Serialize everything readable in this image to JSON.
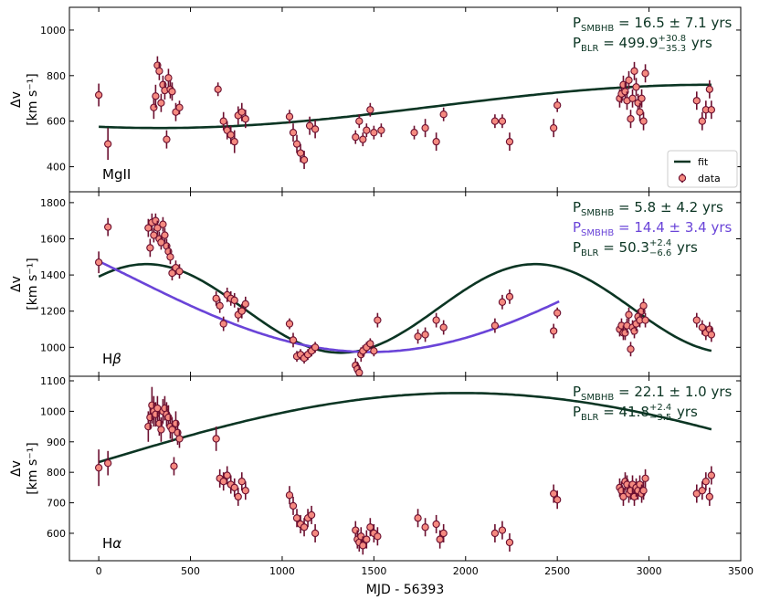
{
  "colors": {
    "fit": "#0b3523",
    "fit_alt": "#6a44d8",
    "marker_face": "#f58a80",
    "marker_edge": "#6b0f2f",
    "errorbar": "#6b0f2f"
  },
  "chart_data": {
    "type": "scatter",
    "xlabel": "MJD - 56393",
    "xlim": [
      -160,
      3500
    ],
    "xticks": [
      0,
      500,
      1000,
      1500,
      2000,
      2500,
      3000,
      3500
    ],
    "legend": {
      "location": "lower-right",
      "entries": [
        "fit",
        "data"
      ]
    },
    "panels": [
      {
        "label": "MgII",
        "ylabel_line1": "Δv",
        "ylabel_line2": "[km s⁻¹]",
        "ylim": [
          290,
          1100
        ],
        "yticks": [
          400,
          600,
          800,
          1000
        ],
        "annotations": [
          {
            "prefix": "P",
            "sub": "SMBHB",
            "mid": " = 16.5 ± 7.1 yrs",
            "sup": "",
            "sub2": "",
            "color": "fit"
          },
          {
            "prefix": "P",
            "sub": "BLR",
            "mid": " = 499.9",
            "sup": "+30.8",
            "sub2": "−35.3",
            "tail": " yrs",
            "color": "fit"
          }
        ],
        "fits": [
          {
            "name": "fit",
            "color": "fit",
            "x_start": 0,
            "x_end": 3340,
            "type": "sine",
            "mean": 665,
            "amp": 95,
            "period": 6027,
            "phase_x": 3340
          }
        ],
        "x": [
          0,
          50,
          300,
          310,
          320,
          330,
          340,
          350,
          360,
          370,
          380,
          390,
          400,
          420,
          440,
          650,
          680,
          700,
          720,
          740,
          760,
          780,
          800,
          1040,
          1060,
          1080,
          1100,
          1120,
          1150,
          1180,
          1400,
          1420,
          1440,
          1460,
          1480,
          1500,
          1540,
          1720,
          1780,
          1840,
          1880,
          2160,
          2200,
          2240,
          2480,
          2500,
          2840,
          2850,
          2860,
          2870,
          2880,
          2890,
          2900,
          2910,
          2920,
          2930,
          2940,
          2950,
          2960,
          2970,
          2980,
          3260,
          3290,
          3310,
          3330,
          3340
        ],
        "y": [
          715,
          500,
          660,
          710,
          845,
          820,
          680,
          760,
          735,
          520,
          790,
          740,
          730,
          640,
          660,
          740,
          600,
          560,
          540,
          510,
          625,
          640,
          610,
          620,
          550,
          500,
          460,
          430,
          580,
          565,
          530,
          600,
          520,
          560,
          650,
          550,
          560,
          550,
          570,
          510,
          630,
          600,
          600,
          510,
          570,
          670,
          700,
          720,
          760,
          730,
          690,
          780,
          610,
          700,
          820,
          750,
          680,
          640,
          700,
          600,
          810,
          690,
          600,
          650,
          740,
          650
        ],
        "yerr": [
          50,
          70,
          50,
          50,
          40,
          40,
          40,
          40,
          40,
          40,
          40,
          40,
          40,
          40,
          30,
          30,
          40,
          40,
          40,
          50,
          40,
          40,
          40,
          30,
          40,
          40,
          40,
          40,
          40,
          40,
          30,
          30,
          30,
          30,
          30,
          30,
          30,
          30,
          40,
          40,
          30,
          30,
          30,
          40,
          40,
          30,
          40,
          40,
          40,
          40,
          40,
          40,
          40,
          40,
          40,
          40,
          40,
          40,
          40,
          40,
          40,
          40,
          40,
          40,
          40,
          40
        ]
      },
      {
        "label": "Hβ",
        "ylabel_line1": "Δv",
        "ylabel_line2": "[km s⁻¹]",
        "ylim": [
          840,
          1860
        ],
        "yticks": [
          1000,
          1200,
          1400,
          1600,
          1800
        ],
        "annotations": [
          {
            "prefix": "P",
            "sub": "SMBHB",
            "mid": " = 5.8 ± 4.2 yrs",
            "sup": "",
            "sub2": "",
            "color": "fit"
          },
          {
            "prefix": "P",
            "sub": "SMBHB",
            "mid": " = 14.4 ± 3.4 yrs",
            "sup": "",
            "sub2": "",
            "color": "fit_alt"
          },
          {
            "prefix": "P",
            "sub": "BLR",
            "mid": " = 50.3",
            "sup": "+2.4",
            "sub2": "−6.6",
            "tail": " yrs",
            "color": "fit"
          }
        ],
        "fits": [
          {
            "name": "fit",
            "color": "fit",
            "x_start": 0,
            "x_end": 3340,
            "type": "sine",
            "mean": 1215,
            "amp": 245,
            "period": 2120,
            "phase_x": 2380
          },
          {
            "name": "fit_alt",
            "color": "fit_alt",
            "x_start": 0,
            "x_end": 2510,
            "type": "sine",
            "mean": 1394,
            "amp": 420,
            "period": 5260,
            "phase_x": -1150
          }
        ],
        "x": [
          0,
          50,
          270,
          280,
          290,
          300,
          310,
          320,
          330,
          340,
          350,
          360,
          370,
          380,
          390,
          400,
          420,
          440,
          640,
          660,
          680,
          700,
          720,
          740,
          760,
          780,
          800,
          1040,
          1060,
          1080,
          1100,
          1120,
          1140,
          1160,
          1180,
          1400,
          1410,
          1420,
          1430,
          1440,
          1460,
          1480,
          1500,
          1520,
          1740,
          1780,
          1840,
          1880,
          2160,
          2200,
          2240,
          2480,
          2500,
          2840,
          2850,
          2860,
          2870,
          2880,
          2890,
          2900,
          2910,
          2920,
          2930,
          2940,
          2950,
          2960,
          2970,
          2980,
          3260,
          3290,
          3310,
          3330,
          3340
        ],
        "y": [
          1470,
          1665,
          1660,
          1550,
          1690,
          1620,
          1700,
          1660,
          1600,
          1580,
          1680,
          1620,
          1560,
          1530,
          1500,
          1410,
          1440,
          1420,
          1270,
          1230,
          1130,
          1290,
          1270,
          1260,
          1180,
          1200,
          1240,
          1130,
          1040,
          950,
          960,
          940,
          960,
          980,
          1000,
          900,
          880,
          860,
          960,
          980,
          1000,
          1020,
          980,
          1150,
          1060,
          1070,
          1150,
          1110,
          1120,
          1250,
          1280,
          1090,
          1190,
          1100,
          1120,
          1080,
          1080,
          1120,
          1180,
          990,
          1110,
          1090,
          1130,
          1170,
          1150,
          1200,
          1230,
          1150,
          1150,
          1110,
          1080,
          1100,
          1070
        ],
        "yerr": [
          60,
          50,
          50,
          50,
          50,
          40,
          40,
          40,
          40,
          40,
          40,
          40,
          40,
          40,
          40,
          40,
          40,
          40,
          40,
          40,
          40,
          40,
          40,
          40,
          40,
          40,
          40,
          30,
          40,
          30,
          30,
          30,
          30,
          30,
          30,
          40,
          40,
          40,
          40,
          30,
          30,
          30,
          30,
          40,
          40,
          40,
          40,
          40,
          40,
          40,
          40,
          40,
          30,
          40,
          40,
          40,
          40,
          40,
          40,
          40,
          40,
          40,
          40,
          40,
          40,
          40,
          40,
          40,
          40,
          40,
          40,
          40,
          40
        ]
      },
      {
        "label": "Hα",
        "ylabel_line1": "Δv",
        "ylabel_line2": "[km s⁻¹]",
        "ylim": [
          510,
          1115
        ],
        "yticks": [
          600,
          700,
          800,
          900,
          1000,
          1100
        ],
        "annotations": [
          {
            "prefix": "P",
            "sub": "SMBHB",
            "mid": " = 22.1 ± 1.0 yrs",
            "sup": "",
            "sub2": "",
            "color": "fit"
          },
          {
            "prefix": "P",
            "sub": "BLR",
            "mid": " = 41.8",
            "sup": "+2.4",
            "sub2": "−3.5",
            "tail": " yrs",
            "color": "fit"
          }
        ],
        "fits": [
          {
            "name": "fit",
            "color": "fit",
            "x_start": 0,
            "x_end": 3340,
            "type": "sine",
            "mean": 827,
            "amp": 233,
            "period": 8060,
            "phase_x": 1980
          }
        ],
        "x": [
          0,
          50,
          270,
          280,
          290,
          300,
          310,
          320,
          330,
          340,
          350,
          360,
          370,
          380,
          390,
          400,
          410,
          420,
          430,
          440,
          640,
          660,
          680,
          700,
          720,
          740,
          760,
          780,
          800,
          1040,
          1060,
          1080,
          1100,
          1120,
          1140,
          1160,
          1180,
          1400,
          1410,
          1420,
          1430,
          1440,
          1460,
          1480,
          1500,
          1520,
          1740,
          1780,
          1840,
          1860,
          1880,
          2160,
          2200,
          2240,
          2480,
          2500,
          2840,
          2850,
          2860,
          2870,
          2880,
          2890,
          2900,
          2910,
          2920,
          2930,
          2940,
          2950,
          2960,
          2970,
          2980,
          3260,
          3290,
          3310,
          3330,
          3340
        ],
        "y": [
          815,
          830,
          950,
          980,
          1020,
          1000,
          990,
          1010,
          960,
          940,
          1000,
          1010,
          990,
          980,
          950,
          940,
          820,
          960,
          930,
          910,
          910,
          780,
          770,
          790,
          760,
          750,
          720,
          770,
          740,
          725,
          690,
          650,
          630,
          620,
          650,
          660,
          600,
          610,
          580,
          570,
          590,
          560,
          580,
          620,
          600,
          590,
          650,
          620,
          630,
          580,
          600,
          600,
          610,
          570,
          730,
          710,
          750,
          740,
          720,
          770,
          760,
          730,
          740,
          760,
          720,
          750,
          740,
          760,
          730,
          740,
          780,
          730,
          740,
          770,
          720,
          790
        ],
        "yerr": [
          60,
          40,
          50,
          40,
          60,
          50,
          40,
          40,
          40,
          40,
          40,
          40,
          40,
          40,
          40,
          40,
          30,
          40,
          40,
          30,
          40,
          30,
          30,
          30,
          30,
          30,
          30,
          30,
          30,
          30,
          30,
          30,
          30,
          30,
          30,
          30,
          30,
          30,
          30,
          30,
          30,
          30,
          30,
          30,
          30,
          30,
          30,
          30,
          30,
          30,
          30,
          30,
          30,
          30,
          30,
          30,
          30,
          30,
          30,
          30,
          30,
          30,
          30,
          30,
          30,
          30,
          30,
          30,
          30,
          30,
          30,
          30,
          30,
          30,
          30,
          30
        ]
      }
    ]
  },
  "legend_labels": {
    "fit": "fit",
    "data": "data"
  },
  "xlabel_text": "MJD - 56393"
}
